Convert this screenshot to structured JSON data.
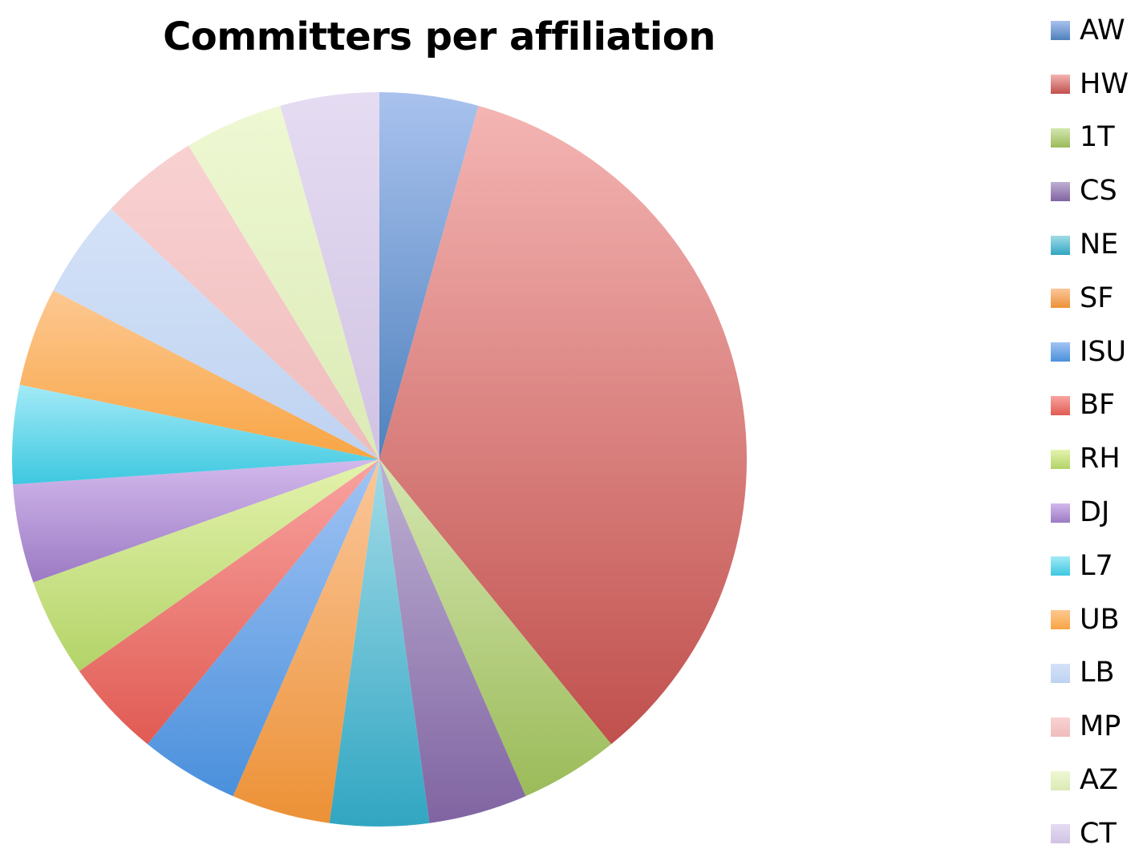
{
  "chart_data": {
    "type": "pie",
    "title": "Committers per affiliation",
    "legend_position": "right",
    "categories": [
      "AW",
      "HW",
      "1T",
      "CS",
      "NE",
      "SF",
      "ISU",
      "BF",
      "RH",
      "DJ",
      "L7",
      "UB",
      "LB",
      "MP",
      "AZ",
      "CT"
    ],
    "values": [
      1,
      8,
      1,
      1,
      1,
      1,
      1,
      1,
      1,
      1,
      1,
      1,
      1,
      1,
      1,
      1
    ],
    "colors": [
      [
        "#a9c2ee",
        "#4f81bd"
      ],
      [
        "#f4b5b3",
        "#c0504d"
      ],
      [
        "#d4e6b0",
        "#9bbb59"
      ],
      [
        "#bdb0d3",
        "#8064a2"
      ],
      [
        "#a3dbe8",
        "#31a6c2"
      ],
      [
        "#fbc79b",
        "#ec9136"
      ],
      [
        "#a2c4f4",
        "#4a90dc"
      ],
      [
        "#f9a3a0",
        "#e05b53"
      ],
      [
        "#e4f3ad",
        "#b3d368"
      ],
      [
        "#d2b9ec",
        "#9c7ac4"
      ],
      [
        "#a3eaf7",
        "#3dc8e0"
      ],
      [
        "#fdc891",
        "#f8a544"
      ],
      [
        "#d4e2f8",
        "#bed2f0"
      ],
      [
        "#f9d1d1",
        "#efbcbc"
      ],
      [
        "#eef8d3",
        "#dbeab5"
      ],
      [
        "#e5dcf2",
        "#d0c3e3"
      ]
    ]
  }
}
